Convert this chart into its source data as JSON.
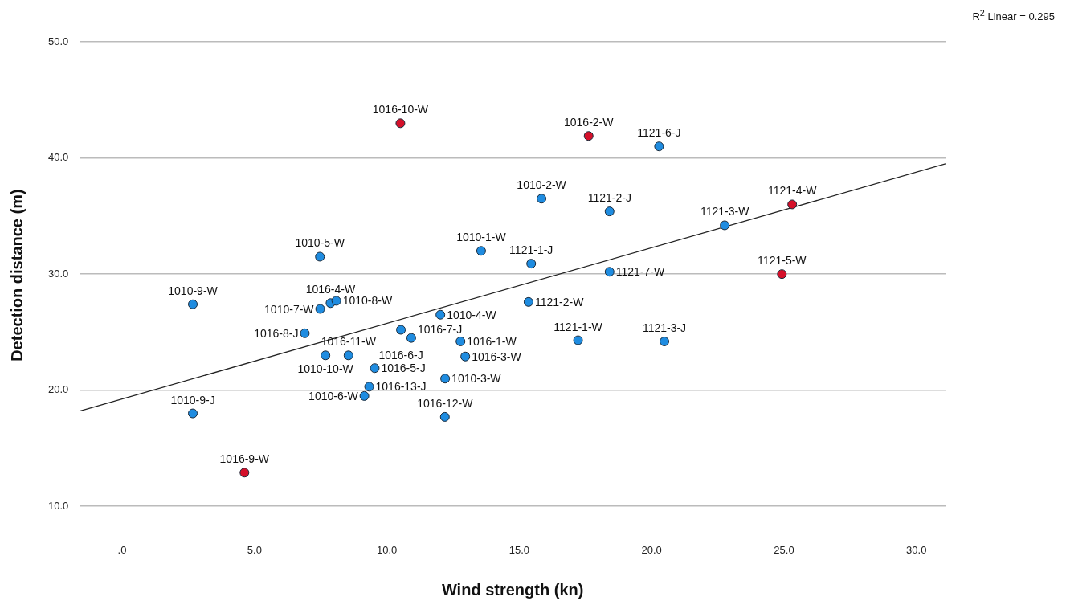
{
  "chart_data": {
    "type": "scatter",
    "xlabel": "Wind strength (kn)",
    "ylabel": "Detection distance (m)",
    "xlim": [
      -1.6,
      31.1
    ],
    "ylim": [
      7.7,
      52.1
    ],
    "xticks": [
      {
        "value": 0,
        "label": ".0"
      },
      {
        "value": 5,
        "label": "5.0"
      },
      {
        "value": 10,
        "label": "10.0"
      },
      {
        "value": 15,
        "label": "15.0"
      },
      {
        "value": 20,
        "label": "20.0"
      },
      {
        "value": 25,
        "label": "25.0"
      },
      {
        "value": 30,
        "label": "30.0"
      }
    ],
    "yticks": [
      {
        "value": 10,
        "label": "10.0"
      },
      {
        "value": 20,
        "label": "20.0"
      },
      {
        "value": 30,
        "label": "30.0"
      },
      {
        "value": 40,
        "label": "40.0"
      },
      {
        "value": 50,
        "label": "50.0"
      }
    ],
    "grid": "y",
    "legend": false,
    "series": [
      {
        "color": "#1f8ce0",
        "marker": "circle",
        "x": [
          7.47,
          13.56,
          2.67,
          7.87,
          8.09,
          7.48,
          12.02,
          6.9,
          10.53,
          10.92,
          12.78,
          7.68,
          8.55,
          12.96,
          9.54,
          12.2,
          9.33,
          9.15,
          2.67,
          12.19,
          20.28,
          15.84,
          18.41,
          22.76,
          15.45,
          18.41,
          15.35,
          17.22,
          20.48
        ],
        "values": [
          31.5,
          32.0,
          27.4,
          27.5,
          27.7,
          27.0,
          26.5,
          24.9,
          25.2,
          24.5,
          24.2,
          23.0,
          23.0,
          22.9,
          21.9,
          21.0,
          20.3,
          19.5,
          18.0,
          17.7,
          41.0,
          36.5,
          35.4,
          34.2,
          30.9,
          30.2,
          27.6,
          24.3,
          24.2
        ]
      },
      {
        "color": "#d5102a",
        "marker": "circle",
        "x": [
          10.51,
          17.62,
          25.31,
          24.92,
          4.62
        ],
        "values": [
          43.0,
          41.9,
          36.0,
          30.0,
          12.9
        ]
      },
      {
        "type": "line",
        "color": "#222222",
        "x": [
          -1.6,
          31.1
        ],
        "values": [
          18.2,
          39.5
        ]
      }
    ],
    "annotations": [
      "R$^{2}$ Linear = 0.295",
      {
        "text": "1010-5-W",
        "x": 7.47,
        "y": 31.5
      },
      {
        "text": "1010-1-W",
        "x": 13.56,
        "y": 32.0
      },
      {
        "text": "1010-9-W",
        "x": 2.67,
        "y": 27.4
      },
      {
        "text": "1016-4-W",
        "x": 7.87,
        "y": 27.5
      },
      {
        "text": "1010-8-W",
        "x": 8.09,
        "y": 27.7
      },
      {
        "text": "1010-7-W",
        "x": 7.48,
        "y": 27.0
      },
      {
        "text": "1010-4-W",
        "x": 12.02,
        "y": 26.5
      },
      {
        "text": "1016-8-J",
        "x": 6.9,
        "y": 24.9
      },
      {
        "text": "1016-6-J",
        "x": 10.53,
        "y": 25.2
      },
      {
        "text": "1016-7-J",
        "x": 10.92,
        "y": 24.5
      },
      {
        "text": "1016-1-W",
        "x": 12.78,
        "y": 24.2
      },
      {
        "text": "1010-10-W",
        "x": 7.68,
        "y": 23.0
      },
      {
        "text": "1016-11-W",
        "x": 8.55,
        "y": 23.0
      },
      {
        "text": "1016-3-W",
        "x": 12.96,
        "y": 22.9
      },
      {
        "text": "1016-5-J",
        "x": 9.54,
        "y": 21.9
      },
      {
        "text": "1010-3-W",
        "x": 12.2,
        "y": 21.0
      },
      {
        "text": "1016-13-J",
        "x": 9.33,
        "y": 20.3
      },
      {
        "text": "1010-6-W",
        "x": 9.15,
        "y": 19.5
      },
      {
        "text": "1010-9-J",
        "x": 2.67,
        "y": 18.0
      },
      {
        "text": "1016-12-W",
        "x": 12.19,
        "y": 17.7
      },
      {
        "text": "1121-6-J",
        "x": 20.28,
        "y": 41.0
      },
      {
        "text": "1010-2-W",
        "x": 15.84,
        "y": 36.5
      },
      {
        "text": "1121-2-J",
        "x": 18.41,
        "y": 35.4
      },
      {
        "text": "1121-3-W",
        "x": 22.76,
        "y": 34.2
      },
      {
        "text": "1121-1-J",
        "x": 15.45,
        "y": 30.9
      },
      {
        "text": "1121-7-W",
        "x": 18.41,
        "y": 30.2
      },
      {
        "text": "1121-2-W",
        "x": 15.35,
        "y": 27.6
      },
      {
        "text": "1121-1-W",
        "x": 17.22,
        "y": 24.3
      },
      {
        "text": "1121-3-J",
        "x": 20.48,
        "y": 24.2
      },
      {
        "text": "1016-10-W",
        "x": 10.51,
        "y": 43.0
      },
      {
        "text": "1016-2-W",
        "x": 17.62,
        "y": 41.9
      },
      {
        "text": "1121-4-W",
        "x": 25.31,
        "y": 36.0
      },
      {
        "text": "1121-5-W",
        "x": 24.92,
        "y": 30.0
      },
      {
        "text": "1016-9-W",
        "x": 4.62,
        "y": 12.9
      }
    ]
  }
}
